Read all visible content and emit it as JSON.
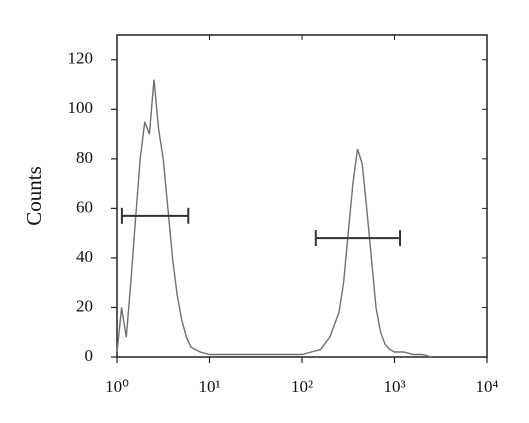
{
  "chart_data": {
    "type": "line",
    "ylabel": "Counts",
    "xscale": "log",
    "xlim": [
      1,
      10000
    ],
    "ylim": [
      0,
      130
    ],
    "xticks": [
      {
        "value": 1,
        "label": "10⁰"
      },
      {
        "value": 10,
        "label": "10¹"
      },
      {
        "value": 100,
        "label": "10²"
      },
      {
        "value": 1000,
        "label": "10³"
      },
      {
        "value": 10000,
        "label": "10⁴"
      }
    ],
    "yticks": [
      0,
      20,
      40,
      60,
      80,
      100,
      120
    ],
    "color": "#707070",
    "x": [
      1,
      1.12,
      1.26,
      1.41,
      1.58,
      1.78,
      2.0,
      2.24,
      2.51,
      2.82,
      3.16,
      3.55,
      3.98,
      4.47,
      5.01,
      5.62,
      6.31,
      7.08,
      7.94,
      10,
      15.8,
      25.1,
      39.8,
      63.1,
      100,
      126,
      158,
      200,
      251,
      282,
      316,
      355,
      398,
      447,
      501,
      562,
      631,
      708,
      794,
      891,
      1000,
      1259,
      1585,
      1995,
      2512
    ],
    "values": [
      2,
      20,
      8,
      30,
      55,
      80,
      95,
      90,
      112,
      92,
      80,
      60,
      40,
      25,
      15,
      8,
      4,
      3,
      2,
      1,
      1,
      1,
      1,
      1,
      1,
      2,
      3,
      8,
      18,
      30,
      50,
      70,
      84,
      78,
      60,
      40,
      20,
      10,
      5,
      3,
      2,
      2,
      1,
      1,
      0
    ],
    "gates": [
      {
        "x": [
          1.13,
          5.9
        ],
        "y": 57
      },
      {
        "x": [
          141,
          1148
        ],
        "y": 48
      }
    ]
  }
}
